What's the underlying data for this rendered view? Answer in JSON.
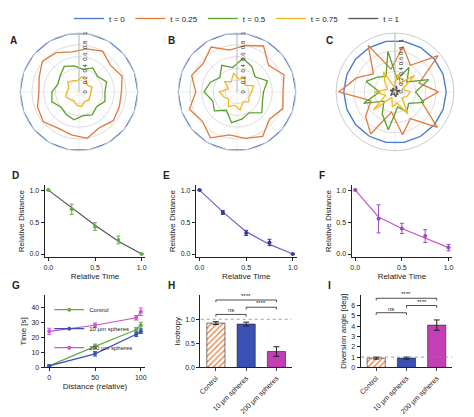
{
  "chart_data": [
    {
      "type": "polar",
      "title": "A",
      "legend": "top",
      "theta": [
        0,
        20,
        40,
        60,
        80,
        100,
        120,
        140,
        160,
        180,
        200,
        220,
        240,
        260,
        280,
        300,
        320,
        340
      ],
      "rlim": [
        0,
        1
      ],
      "rticks": [
        0,
        0.2,
        0.4,
        0.6,
        0.8,
        1
      ],
      "series": [
        {
          "name": "t = 0",
          "color": "#4a7bd0",
          "values": [
            1,
            1,
            1,
            1,
            1,
            1,
            1,
            1,
            1,
            1,
            1,
            1,
            1,
            1,
            1,
            1,
            1,
            1
          ]
        },
        {
          "name": "t = 0.25",
          "color": "#e07b39",
          "values": [
            0.72,
            0.78,
            0.7,
            0.8,
            0.74,
            0.69,
            0.77,
            0.81,
            0.72,
            0.68,
            0.75,
            0.79,
            0.71,
            0.74,
            0.8,
            0.7,
            0.76,
            0.73
          ]
        },
        {
          "name": "t = 0.5",
          "color": "#5aa02c",
          "values": [
            0.44,
            0.5,
            0.41,
            0.47,
            0.39,
            0.45,
            0.5,
            0.42,
            0.38,
            0.46,
            0.49,
            0.4,
            0.44,
            0.48,
            0.41,
            0.45,
            0.39,
            0.47
          ]
        },
        {
          "name": "t = 0.75",
          "color": "#f2b81d",
          "values": [
            0.2,
            0.24,
            0.18,
            0.23,
            0.26,
            0.19,
            0.22,
            0.25,
            0.18,
            0.21,
            0.24,
            0.2,
            0.17,
            0.23,
            0.25,
            0.19,
            0.22,
            0.2
          ]
        },
        {
          "name": "t = 1",
          "color": "#555555",
          "values": [
            0,
            0,
            0,
            0,
            0,
            0,
            0,
            0,
            0,
            0,
            0,
            0,
            0,
            0,
            0,
            0,
            0,
            0
          ]
        }
      ]
    },
    {
      "type": "polar",
      "title": "B",
      "theta": [
        0,
        20,
        40,
        60,
        80,
        100,
        120,
        140,
        160,
        180,
        200,
        220,
        240,
        260,
        280,
        300,
        320,
        340
      ],
      "rlim": [
        0,
        1
      ],
      "rticks": [
        0,
        0.2,
        0.4,
        0.6,
        0.8,
        1
      ],
      "series": [
        {
          "name": "t = 0",
          "color": "#4a7bd0",
          "values": [
            1,
            1,
            1,
            1,
            1,
            1,
            1,
            1,
            1,
            1,
            1,
            1,
            1,
            1,
            1,
            1,
            1,
            1
          ]
        },
        {
          "name": "t = 0.25",
          "color": "#e07b39",
          "values": [
            0.78,
            0.85,
            0.7,
            0.9,
            0.8,
            0.72,
            0.88,
            0.75,
            0.82,
            0.7,
            0.86,
            0.77,
            0.9,
            0.74,
            0.8,
            0.87,
            0.72,
            0.83
          ]
        },
        {
          "name": "t = 0.5",
          "color": "#5aa02c",
          "values": [
            0.45,
            0.55,
            0.4,
            0.5,
            0.58,
            0.42,
            0.52,
            0.38,
            0.48,
            0.56,
            0.44,
            0.5,
            0.36,
            0.53,
            0.47,
            0.41,
            0.55,
            0.46
          ]
        },
        {
          "name": "t = 0.75",
          "color": "#f2b81d",
          "values": [
            0.25,
            0.3,
            0.18,
            0.28,
            0.22,
            0.32,
            0.2,
            0.27,
            0.15,
            0.3,
            0.24,
            0.19,
            0.29,
            0.23,
            0.31,
            0.2,
            0.26,
            0.22
          ]
        },
        {
          "name": "t = 1",
          "color": "#555555",
          "values": [
            0,
            0,
            0,
            0,
            0,
            0,
            0,
            0,
            0,
            0,
            0,
            0,
            0,
            0,
            0,
            0,
            0,
            0
          ]
        }
      ]
    },
    {
      "type": "polar",
      "title": "C",
      "theta": [
        0,
        20,
        40,
        60,
        80,
        100,
        120,
        140,
        160,
        180,
        200,
        220,
        240,
        260,
        280,
        300,
        320,
        340
      ],
      "rlim": [
        0,
        1.15
      ],
      "rticks": [
        0,
        0.2,
        0.4,
        0.6,
        0.8,
        1
      ],
      "series": [
        {
          "name": "t = 0",
          "color": "#4a7bd0",
          "values": [
            1,
            1,
            1,
            1,
            1,
            1,
            1,
            1,
            1,
            1,
            1,
            1,
            1,
            1,
            1,
            1,
            1,
            1
          ]
        },
        {
          "name": "t = 0.25",
          "color": "#e07b39",
          "values": [
            0.85,
            0.5,
            1.1,
            0.6,
            0.9,
            0.45,
            1.05,
            0.55,
            0.8,
            1.1,
            0.5,
            0.75,
            0.95,
            0.4,
            0.85,
            0.6,
            1.08,
            0.55
          ]
        },
        {
          "name": "t = 0.5",
          "color": "#5aa02c",
          "values": [
            0.4,
            0.7,
            0.3,
            0.55,
            0.25,
            0.8,
            0.35,
            0.45,
            0.6,
            0.3,
            0.65,
            0.28,
            0.5,
            0.75,
            0.3,
            0.45,
            0.35,
            0.6
          ]
        },
        {
          "name": "t = 0.75",
          "color": "#f2b81d",
          "values": [
            0.3,
            0.15,
            0.5,
            0.2,
            0.35,
            0.1,
            0.45,
            0.25,
            0.15,
            0.4,
            0.2,
            0.55,
            0.12,
            0.3,
            0.22,
            0.5,
            0.18,
            0.25
          ]
        },
        {
          "name": "t = 1",
          "color": "#555555",
          "values": [
            0.05,
            0.1,
            0.02,
            0.08,
            0.12,
            0.03,
            0.09,
            0.05,
            0.1,
            0.04,
            0.07,
            0.11,
            0.03,
            0.06,
            0.1,
            0.05,
            0.08,
            0.04
          ]
        }
      ]
    },
    {
      "type": "line",
      "title": "D",
      "xlabel": "Relative Time",
      "ylabel": "Relative Distance",
      "x": [
        0,
        0.25,
        0.5,
        0.75,
        1
      ],
      "xlim": [
        -0.04,
        1.04
      ],
      "xticks": [
        {
          "value": 0,
          "label": "0.0"
        },
        {
          "value": 0.5,
          "label": "0.5"
        },
        {
          "value": 1,
          "label": "1.0"
        }
      ],
      "ylim": [
        -0.05,
        1.08
      ],
      "yticks": [
        {
          "value": 0,
          "label": "0.0"
        },
        {
          "value": 0.5,
          "label": "0.5"
        },
        {
          "value": 1,
          "label": "1.0"
        }
      ],
      "series": [
        {
          "color": "#555555",
          "line_style": "solid",
          "values": [
            1,
            0.72,
            0.45,
            0.2,
            0
          ]
        },
        {
          "color": "#6aa84f",
          "marker": "circle",
          "values": [
            1,
            0.7,
            0.43,
            0.22,
            0
          ],
          "error": [
            0,
            0.08,
            0.06,
            0.06,
            0
          ]
        }
      ]
    },
    {
      "type": "line",
      "title": "E",
      "xlabel": "Relative Time",
      "ylabel": "Relative Distance",
      "x": [
        0,
        0.25,
        0.5,
        0.75,
        1
      ],
      "xlim": [
        -0.04,
        1.04
      ],
      "xticks": [
        {
          "value": 0,
          "label": "0.0"
        },
        {
          "value": 0.5,
          "label": "0.5"
        },
        {
          "value": 1,
          "label": "1.0"
        }
      ],
      "ylim": [
        -0.05,
        1.08
      ],
      "yticks": [
        {
          "value": 0,
          "label": "0.0"
        },
        {
          "value": 0.5,
          "label": "0.5"
        },
        {
          "value": 1,
          "label": "1.0"
        }
      ],
      "series": [
        {
          "color": "#7b5cc9",
          "line_style": "solid",
          "values": [
            1,
            0.66,
            0.35,
            0.15,
            0
          ]
        },
        {
          "color": "#2f3e9e",
          "marker": "circle",
          "values": [
            1,
            0.65,
            0.33,
            0.18,
            0
          ],
          "error": [
            0,
            0.03,
            0.04,
            0.05,
            0
          ]
        }
      ]
    },
    {
      "type": "line",
      "title": "F",
      "xlabel": "Relative Time",
      "ylabel": "Relative Distance",
      "x": [
        0,
        0.25,
        0.5,
        0.75,
        1
      ],
      "xlim": [
        -0.04,
        1.04
      ],
      "xticks": [
        {
          "value": 0,
          "label": "0.0"
        },
        {
          "value": 0.5,
          "label": "0.5"
        },
        {
          "value": 1,
          "label": "1.0"
        }
      ],
      "ylim": [
        -0.05,
        1.08
      ],
      "yticks": [
        {
          "value": 0,
          "label": "0.0"
        },
        {
          "value": 0.5,
          "label": "0.5"
        },
        {
          "value": 1,
          "label": "1.0"
        }
      ],
      "series": [
        {
          "color": "#c957c9",
          "line_style": "solid",
          "values": [
            1,
            0.58,
            0.4,
            0.25,
            0.1
          ]
        },
        {
          "color": "#9b4bbf",
          "marker": "circle",
          "values": [
            1,
            0.55,
            0.4,
            0.28,
            0.1
          ],
          "error": [
            0,
            0.22,
            0.08,
            0.1,
            0.05
          ]
        }
      ]
    },
    {
      "type": "scatter",
      "title": "G",
      "xlabel": "Distance (relative)",
      "ylabel": "Time [s]",
      "legend": "top left",
      "xlim": [
        -5,
        105
      ],
      "xticks": [
        0,
        50,
        100
      ],
      "ylim": [
        0,
        48
      ],
      "yticks": [
        0,
        10,
        20,
        30,
        40
      ],
      "series": [
        {
          "name": "Control",
          "color": "#6aa84f",
          "marker": "circle",
          "line_style": "solid",
          "x": [
            0,
            50,
            95,
            100
          ],
          "values": [
            1,
            14,
            25,
            28
          ],
          "error": [
            0.5,
            1.5,
            1.5,
            2
          ]
        },
        {
          "name": "10 µm spheres",
          "color": "#3b50b5",
          "marker": "circle",
          "line_style": "solid",
          "x": [
            0,
            50,
            95,
            100
          ],
          "values": [
            1,
            9,
            22,
            24
          ],
          "error": [
            0.5,
            1.5,
            1.5,
            1.5
          ]
        },
        {
          "name": "200 µm spheres",
          "color": "#c957c9",
          "marker": "circle",
          "line_style": "solid",
          "x": [
            0,
            50,
            95,
            100
          ],
          "values": [
            24,
            28,
            33,
            37
          ],
          "error": [
            2,
            1.5,
            1.5,
            2.5
          ]
        }
      ]
    },
    {
      "type": "bar",
      "title": "H",
      "ylabel": "Isotropy",
      "categories": [
        "Control",
        "10 µm spheres",
        "200 µm spheres"
      ],
      "values": [
        0.92,
        0.9,
        0.33
      ],
      "error": [
        0.03,
        0.04,
        0.1
      ],
      "colors": [
        "#e07b39",
        "#3b50b5",
        "#c23fb6"
      ],
      "ylim": [
        0,
        1.5
      ],
      "yticks": [
        {
          "value": 0,
          "label": "0.0"
        },
        {
          "value": 0.5,
          "label": "0.5"
        },
        {
          "value": 1,
          "label": "1.0"
        }
      ],
      "ref_line": 1,
      "comparisons": [
        {
          "pair": [
            "Control",
            "10 µm spheres"
          ],
          "label": "ns"
        },
        {
          "pair": [
            "10 µm spheres",
            "200 µm spheres"
          ],
          "label": "****"
        },
        {
          "pair": [
            "Control",
            "200 µm spheres"
          ],
          "label": "****"
        }
      ]
    },
    {
      "type": "bar",
      "title": "I",
      "ylabel": "Diversion angle [deg]",
      "categories": [
        "Control",
        "10 µm spheres",
        "200 µm spheres"
      ],
      "values": [
        0.9,
        0.9,
        4.1
      ],
      "error": [
        0.1,
        0.1,
        0.5
      ],
      "colors": [
        "#e07b39",
        "#3b50b5",
        "#c23fb6"
      ],
      "ylim": [
        0,
        7
      ],
      "yticks": [
        0,
        1,
        2,
        3,
        4,
        5,
        6
      ],
      "ref_line": 1,
      "comparisons": [
        {
          "pair": [
            "Control",
            "10 µm spheres"
          ],
          "label": "ns"
        },
        {
          "pair": [
            "10 µm spheres",
            "200 µm spheres"
          ],
          "label": "****"
        },
        {
          "pair": [
            "Control",
            "200 µm spheres"
          ],
          "label": "****"
        }
      ]
    }
  ]
}
